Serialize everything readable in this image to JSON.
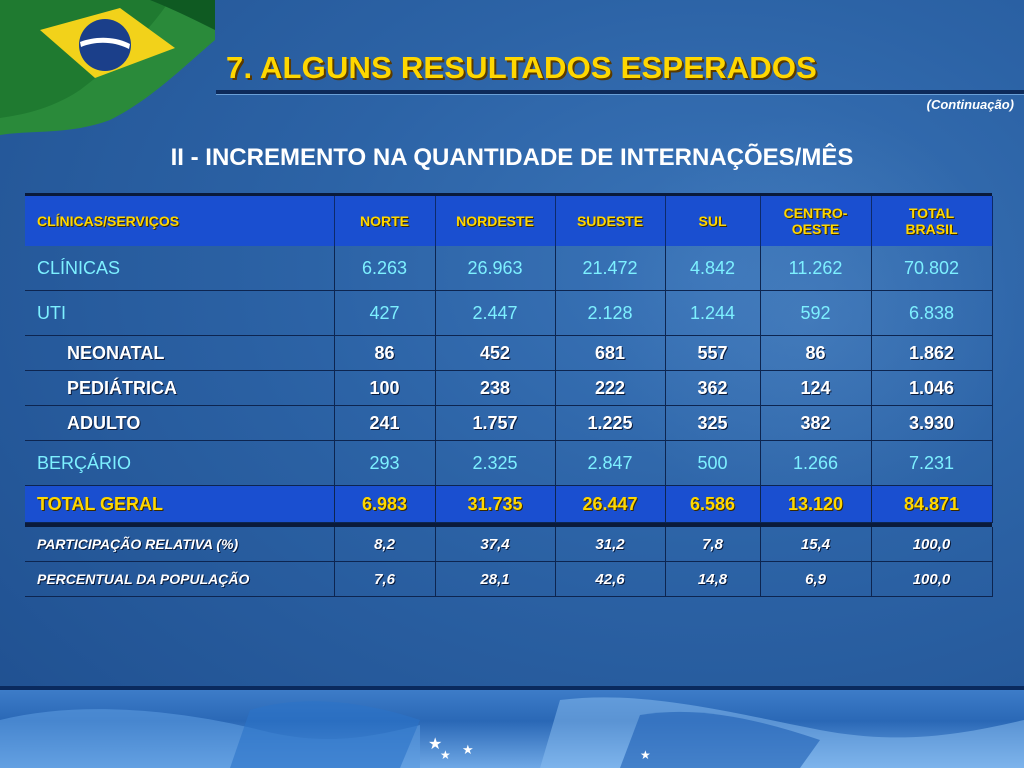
{
  "header": {
    "title": "7. ALGUNS RESULTADOS ESPERADOS",
    "continuation": "(Continuação)"
  },
  "subtitle": "II - INCREMENTO NA QUANTIDADE DE INTERNAÇÕES/MÊS",
  "table": {
    "columns": [
      "CLÍNICAS/SERVIÇOS",
      "NORTE",
      "NORDESTE",
      "SUDESTE",
      "SUL",
      "CENTRO-OESTE",
      "TOTAL BRASIL"
    ],
    "column_lines": {
      "centro_1": "CENTRO-",
      "centro_2": "OESTE",
      "total_1": "TOTAL",
      "total_2": "BRASIL"
    },
    "rows": {
      "clinicas": [
        "CLÍNICAS",
        "6.263",
        "26.963",
        "21.472",
        "4.842",
        "11.262",
        "70.802"
      ],
      "uti": [
        "UTI",
        "427",
        "2.447",
        "2.128",
        "1.244",
        "592",
        "6.838"
      ],
      "neonatal": [
        "NEONATAL",
        "86",
        "452",
        "681",
        "557",
        "86",
        "1.862"
      ],
      "pediatrica": [
        "PEDIÁTRICA",
        "100",
        "238",
        "222",
        "362",
        "124",
        "1.046"
      ],
      "adulto": [
        "ADULTO",
        "241",
        "1.757",
        "1.225",
        "325",
        "382",
        "3.930"
      ],
      "bercario": [
        "BERÇÁRIO",
        "293",
        "2.325",
        "2.847",
        "500",
        "1.266",
        "7.231"
      ],
      "total_geral": [
        "TOTAL GERAL",
        "6.983",
        "31.735",
        "26.447",
        "6.586",
        "13.120",
        "84.871"
      ],
      "participacao": [
        "PARTICIPAÇÃO RELATIVA (%)",
        "8,2",
        "37,4",
        "31,2",
        "7,8",
        "15,4",
        "100,0"
      ],
      "populacao": [
        "PERCENTUAL DA POPULAÇÃO",
        "7,6",
        "28,1",
        "42,6",
        "14,8",
        "6,9",
        "100,0"
      ]
    }
  },
  "colors": {
    "title": "#ffd700",
    "header_bg": "#1a4fd0",
    "cyan_text": "#7df0ff",
    "background": "#2a5ea0"
  },
  "icons": {
    "corner_flag": "brazil-flag-icon",
    "stars": "star-icon"
  }
}
